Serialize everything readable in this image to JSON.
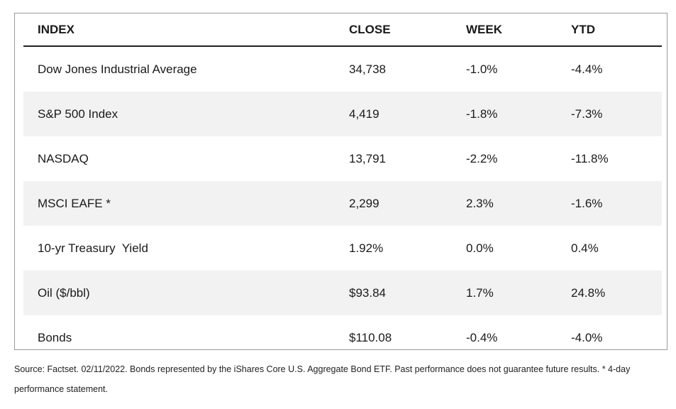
{
  "table": {
    "headers": [
      "INDEX",
      "CLOSE",
      "WEEK",
      "YTD"
    ],
    "rows": [
      [
        "Dow Jones Industrial Average",
        "34,738",
        "-1.0%",
        "-4.4%"
      ],
      [
        "S&P 500 Index",
        "4,419",
        "-1.8%",
        "-7.3%"
      ],
      [
        "NASDAQ",
        "13,791",
        "-2.2%",
        "-11.8%"
      ],
      [
        "MSCI EAFE *",
        "2,299",
        "2.3%",
        "-1.6%"
      ],
      [
        "10-yr Treasury  Yield",
        "1.92%",
        "0.0%",
        "0.4%"
      ],
      [
        "Oil ($/bbl)",
        "$93.84",
        "1.7%",
        "24.8%"
      ],
      [
        "Bonds",
        "$110.08",
        "-0.4%",
        "-4.0%"
      ]
    ]
  },
  "footnote": "Source: Factset. 02/11/2022. Bonds represented by the iShares Core U.S. Aggregate Bond ETF. Past performance does not guarantee future results. * 4-day performance statement."
}
